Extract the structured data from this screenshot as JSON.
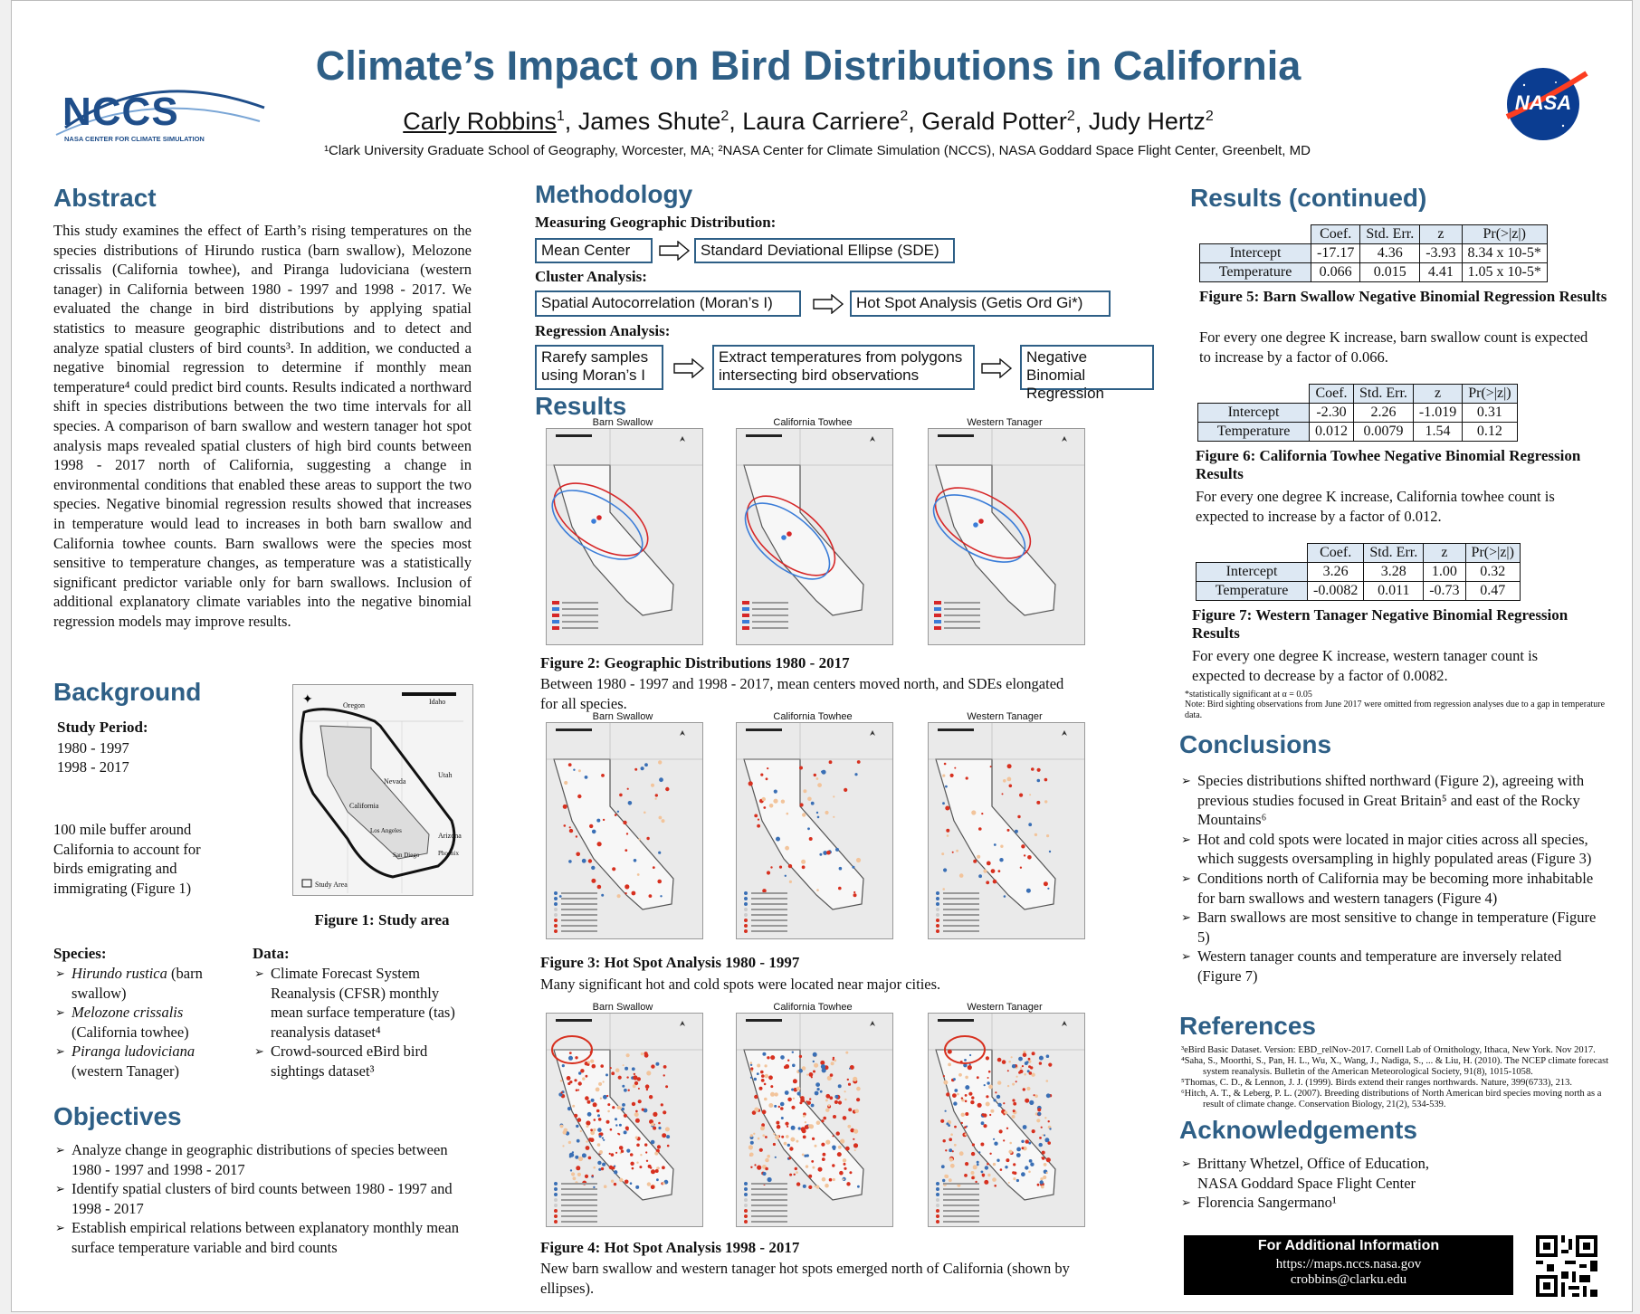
{
  "header": {
    "title": "Climate’s Impact on Bird Distributions in California",
    "authors": [
      {
        "name": "Carly Robbins",
        "sup": "1",
        "underline": true
      },
      {
        "name": "James Shute",
        "sup": "2"
      },
      {
        "name": "Laura Carriere",
        "sup": "2"
      },
      {
        "name": "Gerald Potter",
        "sup": "2"
      },
      {
        "name": "Judy Hertz",
        "sup": "2"
      }
    ],
    "affiliations": "¹Clark University Graduate School of Geography, Worcester, MA; ²NASA Center for Climate Simulation (NCCS), NASA Goddard Space Flight Center, Greenbelt, MD",
    "left_logo": {
      "text": "NCCS",
      "subtext": "NASA CENTER FOR CLIMATE SIMULATION"
    },
    "right_logo": {
      "text": "NASA"
    }
  },
  "abstract": {
    "heading": "Abstract",
    "text": "This study examines the effect of Earth’s rising temperatures on the species distributions of Hirundo rustica (barn swallow), Melozone crissalis (California towhee), and Piranga ludoviciana (western tanager) in California between 1980 - 1997 and 1998 - 2017. We evaluated the change in bird distributions by applying spatial statistics to measure geographic distributions and to detect and analyze spatial clusters of bird counts³. In addition, we conducted a negative binomial regression to determine if monthly mean temperature⁴ could predict bird counts. Results indicated a northward shift in species distributions between the two time intervals for all species. A comparison of barn swallow and western tanager hot spot analysis maps revealed spatial clusters of high bird counts between 1998 - 2017 north of California, suggesting a change in environmental conditions that enabled these areas to support the two species. Negative binomial regression results showed that increases in temperature would lead to increases in both barn swallow and California towhee counts. Barn swallows were the species most sensitive to temperature changes, as temperature was a statistically significant predictor variable only for barn swallows. Inclusion of additional explanatory climate variables into the negative binomial regression models may improve results."
  },
  "background": {
    "heading": "Background",
    "study_period_label": "Study Period:",
    "periods": [
      "1980 - 1997",
      "1998 - 2017"
    ],
    "buffer_text": "100 mile buffer around California to account for birds emigrating and immigrating (Figure 1)",
    "fig1_caption": "Figure 1: Study area",
    "map_legend": "Study Area",
    "map_labels": [
      "Oregon",
      "Idaho",
      "Nevada",
      "Utah",
      "California",
      "Los Angeles",
      "Arizona",
      "San Diego",
      "Phoenix"
    ],
    "species_label": "Species:",
    "species": [
      {
        "sci": "Hirundo rustica",
        "common": " (barn swallow)"
      },
      {
        "sci": "Melozone crissalis",
        "common": " (California towhee)"
      },
      {
        "sci": "Piranga ludoviciana",
        "common": " (western Tanager)"
      }
    ],
    "data_label": "Data:",
    "data_items": [
      "Climate Forecast System Reanalysis (CFSR) monthly mean surface temperature (tas) reanalysis dataset⁴",
      "Crowd-sourced eBird bird sightings dataset³"
    ]
  },
  "objectives": {
    "heading": "Objectives",
    "items": [
      "Analyze change in geographic distributions of species between 1980 - 1997 and 1998 - 2017",
      "Identify spatial clusters of bird counts between 1980 - 1997 and 1998 - 2017",
      "Establish empirical relations between explanatory monthly mean surface temperature variable and bird counts"
    ]
  },
  "methodology": {
    "heading": "Methodology",
    "geo_label": "Measuring Geographic Distribution:",
    "geo_boxes": [
      "Mean Center",
      "Standard Deviational Ellipse (SDE)"
    ],
    "cluster_label": "Cluster Analysis:",
    "cluster_boxes": [
      "Spatial Autocorrelation (Moran’s I)",
      "Hot Spot Analysis (Getis Ord Gi*)"
    ],
    "regression_label": "Regression Analysis:",
    "regression_boxes": [
      "Rarefy samples using Moran’s I",
      "Extract temperatures from polygons intersecting bird observations",
      "Negative Binomial Regression"
    ]
  },
  "results": {
    "heading": "Results",
    "species_titles": [
      "Barn Swallow",
      "California Towhee",
      "Western Tanager"
    ],
    "fig2_caption": "Figure 2: Geographic Distributions 1980 - 2017",
    "fig2_text": "Between 1980 - 1997 and 1998 - 2017, mean centers moved north, and SDEs elongated for all species.",
    "fig3_caption": "Figure 3: Hot Spot Analysis 1980 - 1997",
    "fig3_text": "Many significant hot and cold spots were located near major cities.",
    "fig4_caption": "Figure 4: Hot Spot Analysis 1998 - 2017",
    "fig4_text": "New barn swallow and western tanager hot spots emerged north of California (shown by ellipses)."
  },
  "results_cont": {
    "heading": "Results (continued)",
    "table_header": [
      "Coef.",
      "Std. Err.",
      "z",
      "Pr(>|z|)"
    ],
    "tables": [
      {
        "rows": [
          {
            "label": "Intercept",
            "cells": [
              "-17.17",
              "4.36",
              "-3.93",
              "8.34 x 10-5*"
            ]
          },
          {
            "label": "Temperature",
            "cells": [
              "0.066",
              "0.015",
              "4.41",
              "1.05 x 10-5*"
            ]
          }
        ],
        "caption": "Figure 5: Barn Swallow Negative Binomial Regression Results",
        "text": "For every one degree K increase, barn swallow count is expected to increase by a factor of 0.066."
      },
      {
        "rows": [
          {
            "label": "Intercept",
            "cells": [
              "-2.30",
              "2.26",
              "-1.019",
              "0.31"
            ]
          },
          {
            "label": "Temperature",
            "cells": [
              "0.012",
              "0.0079",
              "1.54",
              "0.12"
            ]
          }
        ],
        "caption": "Figure 6: California Towhee Negative Binomial Regression Results",
        "text": "For every one degree K increase, California towhee count is expected to increase by a factor of 0.012."
      },
      {
        "rows": [
          {
            "label": "Intercept",
            "cells": [
              "3.26",
              "3.28",
              "1.00",
              "0.32"
            ]
          },
          {
            "label": "Temperature",
            "cells": [
              "-0.0082",
              "0.011",
              "-0.73",
              "0.47"
            ]
          }
        ],
        "caption": "Figure 7: Western Tanager Negative Binomial Regression Results",
        "text": "For every one degree K increase, western tanager count is expected to decrease by a factor of 0.0082."
      }
    ],
    "note1": "*statistically significant at α = 0.05",
    "note2": "Note: Bird sighting observations from June 2017 were omitted from regression analyses due to a gap in temperature data."
  },
  "conclusions": {
    "heading": "Conclusions",
    "items": [
      "Species distributions shifted northward (Figure 2), agreeing with previous studies focused in Great Britain⁵ and east of the Rocky Mountains⁶",
      "Hot and cold spots were located in major cities across all species, which suggests oversampling in highly populated areas (Figure 3)",
      "Conditions north of California may be becoming more inhabitable for barn swallows and western tanagers (Figure 4)",
      "Barn swallows are most sensitive to change in temperature (Figure 5)",
      "Western tanager counts and temperature are inversely related (Figure 7)"
    ]
  },
  "references": {
    "heading": "References",
    "items": [
      "³eBird Basic Dataset. Version: EBD_relNov-2017. Cornell Lab of Ornithology, Ithaca, New York. Nov 2017.",
      "⁴Saha, S., Moorthi, S., Pan, H. L., Wu, X., Wang, J., Nadiga, S., ... & Liu, H. (2010). The NCEP climate forecast system reanalysis. Bulletin of the American Meteorological Society, 91(8), 1015-1058.",
      "⁵Thomas, C. D., & Lennon, J. J. (1999). Birds extend their ranges northwards. Nature, 399(6733), 213.",
      "⁶Hitch, A. T., & Leberg, P. L. (2007). Breeding distributions of North American bird species moving north as a result of climate change. Conservation Biology, 21(2), 534-539."
    ]
  },
  "acknowledgements": {
    "heading": "Acknowledgements",
    "items": [
      "Brittany Whetzel, Office of Education, NASA Goddard Space Flight Center",
      "Florencia Sangermano¹"
    ]
  },
  "info": {
    "title": "For Additional Information",
    "url": "https://maps.nccs.nasa.gov",
    "email": "crobbins@clarku.edu"
  },
  "colors": {
    "heading": "#2e5f86",
    "hot": "#d7301f",
    "cold": "#3a6fb5",
    "ellipse_red": "#d62728",
    "ellipse_blue": "#3b7dd8"
  }
}
